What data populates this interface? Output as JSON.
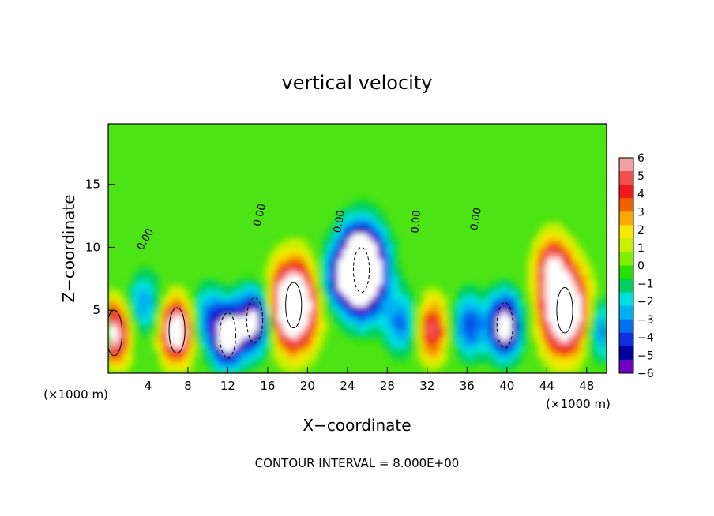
{
  "chart_data": {
    "type": "heatmap",
    "title": "vertical velocity",
    "xlabel": "X−coordinate",
    "ylabel": "Z−coordinate",
    "x_unit_left": "(×1000 m)",
    "x_unit_right": "(×1000 m)",
    "footer": "CONTOUR INTERVAL = 8.000E+00",
    "contour_label": "0.00",
    "xlim": [
      0,
      50
    ],
    "ylim": [
      0,
      19.8
    ],
    "x_ticks": [
      4,
      8,
      12,
      16,
      20,
      24,
      28,
      32,
      36,
      40,
      44,
      48
    ],
    "y_ticks": [
      5,
      10,
      15
    ],
    "colorbar": {
      "range": [
        -6,
        6
      ],
      "ticks": [
        "6",
        "5",
        "4",
        "3",
        "2",
        "1",
        "0",
        "−1",
        "−2",
        "−3",
        "−4",
        "−5",
        "−6"
      ],
      "colors": [
        "#f2a0a0",
        "#f05050",
        "#f01818",
        "#f06000",
        "#f8a800",
        "#f8e800",
        "#c8f000",
        "#80ee00",
        "#28e000",
        "#00d060",
        "#00e0e0",
        "#00b0f0",
        "#0070f0",
        "#1030e0",
        "#0000a0",
        "#7000c0"
      ]
    },
    "background_color": "#4ce414",
    "series": [
      {
        "x": 0.6,
        "z": 3.2,
        "w": 6.5
      },
      {
        "x": 6.9,
        "z": 3.4,
        "w": 8.0
      },
      {
        "x": 12.0,
        "z": 3.0,
        "w": -7.5
      },
      {
        "x": 14.7,
        "z": 4.2,
        "w": -7.0
      },
      {
        "x": 18.6,
        "z": 5.4,
        "w": 11.0
      },
      {
        "x": 25.4,
        "z": 8.2,
        "w": -13.5
      },
      {
        "x": 32.5,
        "z": 3.5,
        "w": 5.0
      },
      {
        "x": 36.2,
        "z": 3.8,
        "w": -4.0
      },
      {
        "x": 39.8,
        "z": 3.8,
        "w": -7.5
      },
      {
        "x": 45.8,
        "z": 5.0,
        "w": 10.5
      },
      {
        "x": 44.5,
        "z": 8.5,
        "w": 5.0
      },
      {
        "x": 3.6,
        "z": 5.5,
        "w": -3.0
      },
      {
        "x": 9.8,
        "z": 4.5,
        "w": -3.0
      },
      {
        "x": 22.5,
        "z": 7.5,
        "w": -2.5
      },
      {
        "x": 29.5,
        "z": 4.0,
        "w": -3.5
      },
      {
        "x": 49.5,
        "z": 3.5,
        "w": -3.5
      }
    ]
  }
}
